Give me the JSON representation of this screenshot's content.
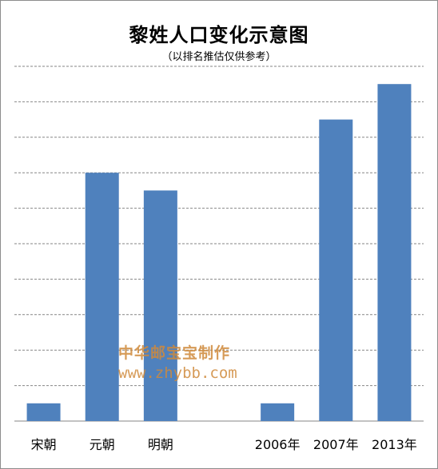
{
  "chart_data": {
    "type": "bar",
    "title": "黎姓人口变化示意图",
    "subtitle": "（以排名推估仅供参考）",
    "categories": [
      "宋朝",
      "元朝",
      "明朝",
      "",
      "2006年",
      "2007年",
      "2013年"
    ],
    "values": [
      1,
      14,
      13,
      0,
      1,
      17,
      19
    ],
    "ylim": [
      0,
      20
    ],
    "y_gridline_step": 2,
    "y_tick_labels_shown": false,
    "grid": true,
    "legend": "none",
    "bar_color": "#4f81bd",
    "grid_color": "#868686"
  },
  "watermark": {
    "line1": "中华邮宝宝制作",
    "line2": "www.zhybb.com",
    "color": "#d08a3c"
  }
}
